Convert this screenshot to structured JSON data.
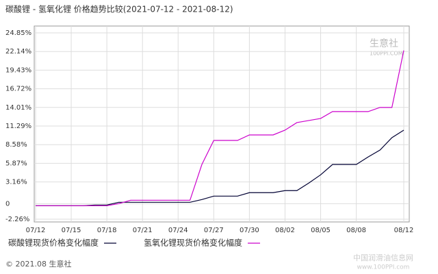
{
  "chart_data": {
    "type": "line",
    "title": "碳酸锂 - 氢氧化锂 价格趋势比较(2021-07-12 - 2021-08-12)",
    "categories": [
      "07/12",
      null,
      null,
      "07/15",
      null,
      null,
      "07/18",
      null,
      null,
      "07/21",
      null,
      null,
      "07/24",
      null,
      null,
      "07/27",
      null,
      null,
      "07/30",
      null,
      null,
      "08/02",
      null,
      null,
      "08/05",
      null,
      null,
      "08/08",
      null,
      null,
      null,
      "08/12"
    ],
    "series": [
      {
        "name": "碳酸锂现货价格变化幅度",
        "color": "#000033",
        "values": [
          -0.3,
          -0.3,
          -0.3,
          -0.3,
          -0.3,
          -0.2,
          -0.2,
          0.2,
          0.2,
          0.2,
          0.2,
          0.2,
          0.2,
          0.2,
          0.6,
          1.1,
          1.1,
          1.1,
          1.6,
          1.6,
          1.6,
          1.9,
          1.9,
          3.0,
          4.2,
          5.7,
          5.7,
          5.7,
          6.8,
          7.8,
          9.6,
          10.7
        ]
      },
      {
        "name": "氢氧化锂现货价格变化幅度",
        "color": "#cc00cc",
        "values": [
          -0.3,
          -0.3,
          -0.3,
          -0.3,
          -0.3,
          -0.3,
          -0.3,
          0.0,
          0.5,
          0.5,
          0.5,
          0.5,
          0.5,
          0.5,
          5.7,
          9.2,
          9.2,
          9.2,
          10.0,
          10.0,
          10.0,
          10.7,
          11.8,
          12.1,
          12.4,
          13.4,
          13.4,
          13.4,
          13.4,
          14.0,
          14.0,
          22.3
        ]
      }
    ],
    "ylim": [
      -2.26,
      24.85
    ],
    "yticks": [
      {
        "value": 24.85,
        "label": "24.85%"
      },
      {
        "value": 22.14,
        "label": "22.14%"
      },
      {
        "value": 19.43,
        "label": "19.43%"
      },
      {
        "value": 16.72,
        "label": "16.72%"
      },
      {
        "value": 14.01,
        "label": "14.01%"
      },
      {
        "value": 11.29,
        "label": "11.29%"
      },
      {
        "value": 8.58,
        "label": "8.58%"
      },
      {
        "value": 5.87,
        "label": "5.87%"
      },
      {
        "value": 3.16,
        "label": "3.16%"
      },
      0,
      {
        "value": -2.26,
        "label": "-2.26%"
      }
    ],
    "grid": true,
    "legend": "bottom",
    "footer": "© 2021.08 生意社",
    "annotations": [
      "生意社",
      "100PPI.COM",
      "中国润滑油信息网",
      "www.100PPI.com"
    ]
  }
}
